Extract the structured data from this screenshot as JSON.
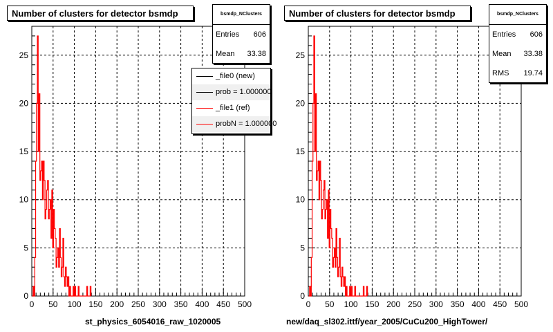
{
  "colors": {
    "frame": "#000000",
    "grid": "#000000",
    "series_new": "#000000",
    "series_ref": "#ff0000"
  },
  "chart_data": [
    {
      "type": "bar",
      "title": "Number of clusters for detector bsmdp",
      "xlabel": "st_physics_6054016_raw_1020005",
      "ylabel": "",
      "xlim": [
        0,
        500
      ],
      "ylim": [
        0,
        28
      ],
      "xticks": [
        "0",
        "50",
        "100",
        "150",
        "200",
        "250",
        "300",
        "350",
        "400",
        "450",
        "500"
      ],
      "yticks": [
        "0",
        "5",
        "10",
        "15",
        "20",
        "25"
      ],
      "grid": true,
      "stats": {
        "name": "bsmdp_NClusters",
        "rows": [
          {
            "label": "Entries",
            "value": "606"
          },
          {
            "label": "Mean",
            "value": "33.38"
          }
        ]
      },
      "legend": {
        "placement": "top-right",
        "entries": [
          {
            "label": "_file0 (new)",
            "color": "#000000"
          },
          {
            "label": "prob = 1.000000",
            "color": "#000000"
          },
          {
            "label": "_file1 (ref)",
            "color": "#ff0000"
          },
          {
            "label": "probN = 1.000000",
            "color": "#ff0000"
          }
        ]
      },
      "series": [
        {
          "color": "#ff0000",
          "x": [
            2,
            4,
            6,
            8,
            10,
            12,
            14,
            16,
            18,
            20,
            22,
            24,
            26,
            28,
            30,
            32,
            34,
            36,
            38,
            40,
            42,
            44,
            46,
            48,
            50,
            52,
            54,
            56,
            58,
            60,
            62,
            64,
            66,
            68,
            70,
            72,
            74,
            76,
            78,
            80,
            82,
            84,
            86,
            88,
            90,
            92,
            94,
            96,
            98,
            100,
            102,
            104,
            106,
            108,
            110,
            112,
            114,
            116,
            118,
            120,
            122,
            124,
            126,
            128,
            130,
            132,
            134,
            136,
            138
          ],
          "values": [
            0,
            1,
            0,
            4,
            14,
            20,
            27,
            15,
            21,
            12,
            13,
            14,
            10,
            14,
            12,
            8,
            9,
            11,
            12,
            8,
            9,
            10,
            6,
            11,
            5,
            9,
            7,
            6,
            3,
            4,
            5,
            3,
            7,
            4,
            2,
            3,
            6,
            2,
            1,
            3,
            2,
            1,
            2,
            0,
            1,
            0,
            0,
            0,
            1,
            0,
            1,
            0,
            0,
            0,
            1,
            0,
            0,
            0,
            0,
            0,
            0,
            0,
            0,
            0,
            1,
            0,
            0,
            0,
            1
          ]
        }
      ]
    },
    {
      "type": "bar",
      "title": "Number of clusters for detector bsmdp",
      "xlabel": "new/daq_sl302.ittf/year_2005/CuCu200_HighTower/",
      "ylabel": "",
      "xlim": [
        0,
        500
      ],
      "ylim": [
        0,
        28
      ],
      "xticks": [
        "0",
        "50",
        "100",
        "150",
        "200",
        "250",
        "300",
        "350",
        "400",
        "450",
        "500"
      ],
      "yticks": [
        "0",
        "5",
        "10",
        "15",
        "20",
        "25"
      ],
      "grid": true,
      "stats": {
        "name": "bsmdp_NClusters",
        "rows": [
          {
            "label": "Entries",
            "value": "606"
          },
          {
            "label": "Mean",
            "value": "33.38"
          },
          {
            "label": "RMS",
            "value": "19.74"
          }
        ]
      },
      "series": [
        {
          "color": "#ff0000",
          "x": [
            2,
            4,
            6,
            8,
            10,
            12,
            14,
            16,
            18,
            20,
            22,
            24,
            26,
            28,
            30,
            32,
            34,
            36,
            38,
            40,
            42,
            44,
            46,
            48,
            50,
            52,
            54,
            56,
            58,
            60,
            62,
            64,
            66,
            68,
            70,
            72,
            74,
            76,
            78,
            80,
            82,
            84,
            86,
            88,
            90,
            92,
            94,
            96,
            98,
            100,
            102,
            104,
            106,
            108,
            110,
            112,
            114,
            116,
            118,
            120,
            122,
            124,
            126,
            128,
            130,
            132,
            134,
            136,
            138
          ],
          "values": [
            0,
            1,
            0,
            4,
            14,
            20,
            27,
            15,
            21,
            12,
            13,
            14,
            10,
            14,
            12,
            8,
            9,
            11,
            12,
            8,
            9,
            10,
            6,
            11,
            5,
            9,
            7,
            6,
            3,
            4,
            5,
            3,
            7,
            4,
            2,
            3,
            6,
            2,
            1,
            3,
            2,
            1,
            2,
            0,
            1,
            0,
            0,
            0,
            1,
            0,
            1,
            0,
            0,
            0,
            1,
            0,
            0,
            0,
            0,
            0,
            0,
            0,
            0,
            0,
            1,
            0,
            0,
            0,
            1
          ]
        }
      ]
    }
  ]
}
